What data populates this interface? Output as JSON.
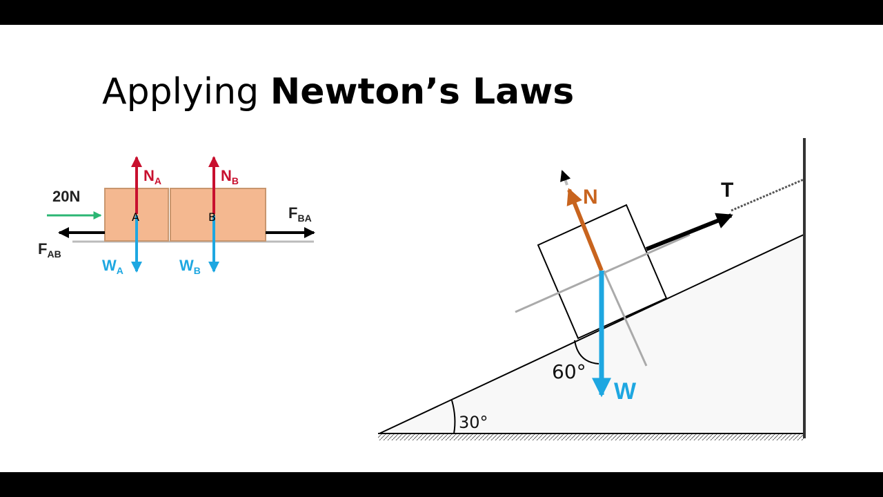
{
  "title": {
    "light": "Applying",
    "bold": "Newton’s Laws"
  },
  "left_diagram": {
    "applied_force": "20N",
    "block_a": "A",
    "block_b": "B",
    "normal_a": {
      "main": "N",
      "sub": "A"
    },
    "normal_b": {
      "main": "N",
      "sub": "B"
    },
    "weight_a": {
      "main": "W",
      "sub": "A"
    },
    "weight_b": {
      "main": "W",
      "sub": "B"
    },
    "force_ba": {
      "main": "F",
      "sub": "BA"
    },
    "force_ab": {
      "main": "F",
      "sub": "AB"
    }
  },
  "right_diagram": {
    "normal": "N",
    "tension": "T",
    "weight": "W",
    "angle_weight": "60°",
    "angle_incline": "30°"
  }
}
